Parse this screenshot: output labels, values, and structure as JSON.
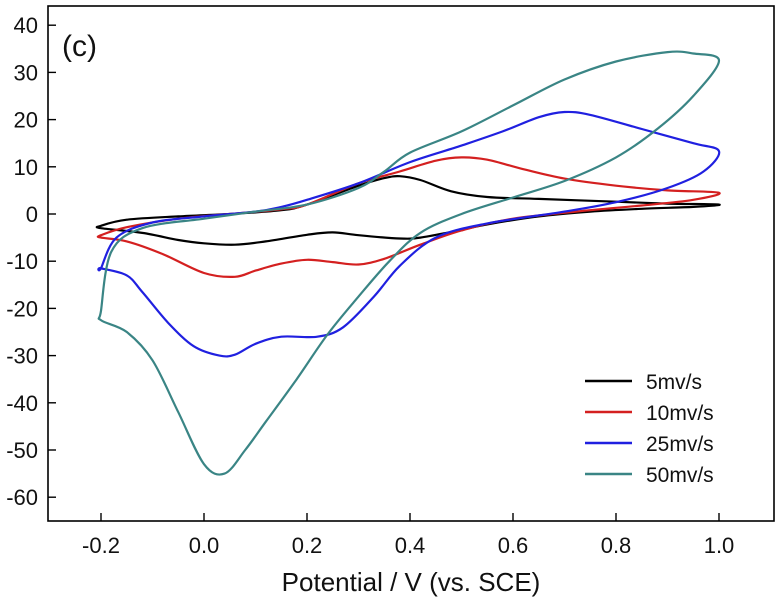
{
  "chart_data": {
    "type": "line",
    "panel_label": "(c)",
    "xlabel": "Potential / V (vs. SCE)",
    "ylabel": "",
    "xlim": [
      -0.3,
      1.05
    ],
    "ylim": [
      -65,
      40
    ],
    "x_ticks": [
      -0.2,
      0.0,
      0.2,
      0.4,
      0.6,
      0.8,
      1.0
    ],
    "x_tick_labels": [
      "-0.2",
      "0.0",
      "0.2",
      "0.4",
      "0.6",
      "0.8",
      "1.0"
    ],
    "y_ticks": [
      40,
      30,
      20,
      10,
      0,
      -10,
      -20,
      -30,
      -40,
      -50,
      -60
    ],
    "y_tick_labels": [
      "40",
      "30",
      "20",
      "10",
      "0",
      "-10",
      "-20",
      "-30",
      "-40",
      "-50",
      "-60"
    ],
    "legend_position": "bottom-right",
    "series": [
      {
        "name": "5mv/s",
        "color": "#000000",
        "points": [
          [
            -0.2,
            -2.5
          ],
          [
            -0.15,
            -1.2
          ],
          [
            -0.05,
            -0.5
          ],
          [
            0.05,
            0
          ],
          [
            0.15,
            0.8
          ],
          [
            0.2,
            2
          ],
          [
            0.3,
            6
          ],
          [
            0.35,
            7.6
          ],
          [
            0.38,
            8
          ],
          [
            0.42,
            7.2
          ],
          [
            0.48,
            4.8
          ],
          [
            0.55,
            3.6
          ],
          [
            0.65,
            3.2
          ],
          [
            0.8,
            2.6
          ],
          [
            0.9,
            2.2
          ],
          [
            1.0,
            2
          ],
          [
            0.95,
            1.5
          ],
          [
            0.85,
            1.1
          ],
          [
            0.75,
            0.5
          ],
          [
            0.65,
            -0.5
          ],
          [
            0.55,
            -2.2
          ],
          [
            0.48,
            -3.8
          ],
          [
            0.42,
            -5
          ],
          [
            0.38,
            -5.2
          ],
          [
            0.3,
            -4.5
          ],
          [
            0.25,
            -3.9
          ],
          [
            0.2,
            -4.4
          ],
          [
            0.12,
            -5.8
          ],
          [
            0.06,
            -6.5
          ],
          [
            0.0,
            -6.2
          ],
          [
            -0.05,
            -5.5
          ],
          [
            -0.12,
            -4
          ],
          [
            -0.2,
            -3
          ]
        ]
      },
      {
        "name": "10mv/s",
        "color": "#d42020",
        "points": [
          [
            -0.2,
            -4.5
          ],
          [
            -0.15,
            -2.8
          ],
          [
            -0.05,
            -1
          ],
          [
            0.05,
            0
          ],
          [
            0.15,
            1
          ],
          [
            0.2,
            2
          ],
          [
            0.3,
            6.5
          ],
          [
            0.38,
            9
          ],
          [
            0.45,
            11.3
          ],
          [
            0.5,
            12
          ],
          [
            0.55,
            11.5
          ],
          [
            0.62,
            9.5
          ],
          [
            0.7,
            7.5
          ],
          [
            0.8,
            6
          ],
          [
            0.9,
            5
          ],
          [
            1.0,
            4.5
          ],
          [
            0.95,
            3
          ],
          [
            0.85,
            1.8
          ],
          [
            0.75,
            0.8
          ],
          [
            0.6,
            -1
          ],
          [
            0.5,
            -3.5
          ],
          [
            0.42,
            -6.5
          ],
          [
            0.35,
            -9.5
          ],
          [
            0.3,
            -10.7
          ],
          [
            0.25,
            -10.2
          ],
          [
            0.2,
            -9.7
          ],
          [
            0.15,
            -10.5
          ],
          [
            0.1,
            -12
          ],
          [
            0.06,
            -13.3
          ],
          [
            0.0,
            -12.5
          ],
          [
            -0.08,
            -8.5
          ],
          [
            -0.15,
            -5.8
          ],
          [
            -0.2,
            -5
          ]
        ]
      },
      {
        "name": "25mv/s",
        "color": "#2020e0",
        "points": [
          [
            -0.2,
            -11.5
          ],
          [
            -0.17,
            -5
          ],
          [
            -0.1,
            -1.8
          ],
          [
            0.0,
            -0.5
          ],
          [
            0.1,
            0.5
          ],
          [
            0.15,
            1.5
          ],
          [
            0.2,
            3
          ],
          [
            0.3,
            6.5
          ],
          [
            0.4,
            11
          ],
          [
            0.5,
            14.5
          ],
          [
            0.58,
            17.5
          ],
          [
            0.65,
            20.5
          ],
          [
            0.7,
            21.6
          ],
          [
            0.75,
            21
          ],
          [
            0.85,
            18
          ],
          [
            0.95,
            15
          ],
          [
            1.0,
            13.3
          ],
          [
            0.97,
            9
          ],
          [
            0.9,
            5.5
          ],
          [
            0.8,
            2.5
          ],
          [
            0.7,
            0.5
          ],
          [
            0.55,
            -2
          ],
          [
            0.45,
            -5
          ],
          [
            0.38,
            -11
          ],
          [
            0.33,
            -17.5
          ],
          [
            0.27,
            -24
          ],
          [
            0.22,
            -26
          ],
          [
            0.15,
            -26
          ],
          [
            0.1,
            -27.5
          ],
          [
            0.06,
            -29.8
          ],
          [
            0.03,
            -30
          ],
          [
            -0.02,
            -28
          ],
          [
            -0.07,
            -23
          ],
          [
            -0.12,
            -16.5
          ],
          [
            -0.15,
            -13
          ],
          [
            -0.2,
            -11.5
          ]
        ]
      },
      {
        "name": "50mv/s",
        "color": "#3a8585",
        "points": [
          [
            -0.2,
            -20.5
          ],
          [
            -0.18,
            -8
          ],
          [
            -0.12,
            -3
          ],
          [
            0.0,
            -1
          ],
          [
            0.1,
            0.5
          ],
          [
            0.2,
            2
          ],
          [
            0.3,
            5.5
          ],
          [
            0.35,
            9
          ],
          [
            0.4,
            13
          ],
          [
            0.5,
            17.5
          ],
          [
            0.6,
            23
          ],
          [
            0.7,
            28.5
          ],
          [
            0.8,
            32.3
          ],
          [
            0.9,
            34.3
          ],
          [
            0.95,
            34
          ],
          [
            1.0,
            32.5
          ],
          [
            0.95,
            25
          ],
          [
            0.88,
            18
          ],
          [
            0.8,
            12
          ],
          [
            0.7,
            7
          ],
          [
            0.6,
            3.5
          ],
          [
            0.5,
            0
          ],
          [
            0.42,
            -4
          ],
          [
            0.36,
            -10
          ],
          [
            0.3,
            -17.5
          ],
          [
            0.24,
            -25.5
          ],
          [
            0.18,
            -35
          ],
          [
            0.12,
            -44
          ],
          [
            0.08,
            -50
          ],
          [
            0.04,
            -55
          ],
          [
            0.0,
            -53
          ],
          [
            -0.05,
            -42
          ],
          [
            -0.1,
            -31
          ],
          [
            -0.15,
            -25
          ],
          [
            -0.2,
            -22.5
          ]
        ]
      }
    ]
  }
}
